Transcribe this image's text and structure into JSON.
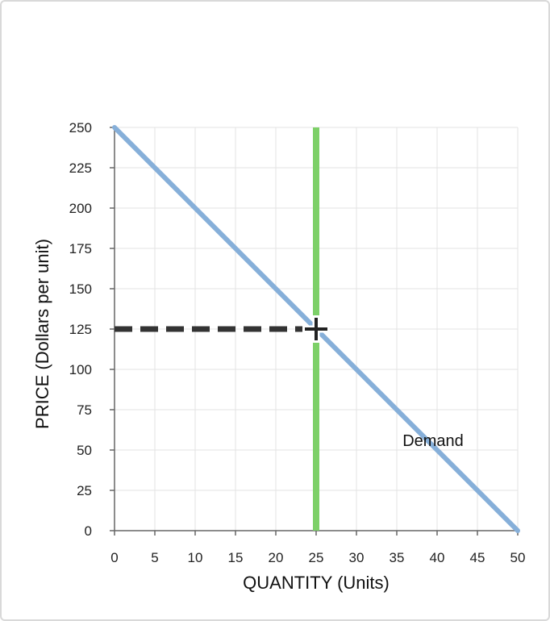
{
  "chart_data": {
    "type": "line",
    "xlabel": "QUANTITY (Units)",
    "ylabel": "PRICE (Dollars per unit)",
    "xlim": [
      0,
      50
    ],
    "ylim": [
      0,
      250
    ],
    "x_ticks": [
      0,
      5,
      10,
      15,
      20,
      25,
      30,
      35,
      40,
      45,
      50
    ],
    "y_ticks": [
      0,
      25,
      50,
      75,
      100,
      125,
      150,
      175,
      200,
      225,
      250
    ],
    "grid": true,
    "series": [
      {
        "name": "Demand",
        "color": "#86afd9",
        "points": [
          [
            0,
            250
          ],
          [
            50,
            0
          ]
        ]
      }
    ],
    "vertical_line": {
      "x": 25,
      "color": "#7dd068"
    },
    "price_line": {
      "y": 125,
      "x_from": 0,
      "x_to": 25,
      "style": "dashed",
      "color": "#333333"
    },
    "marker": {
      "x": 25,
      "y": 125,
      "shape": "plus",
      "color": "#222222"
    },
    "annotations": [
      {
        "text": "Demand",
        "x": 39.5,
        "y": 56
      }
    ]
  }
}
